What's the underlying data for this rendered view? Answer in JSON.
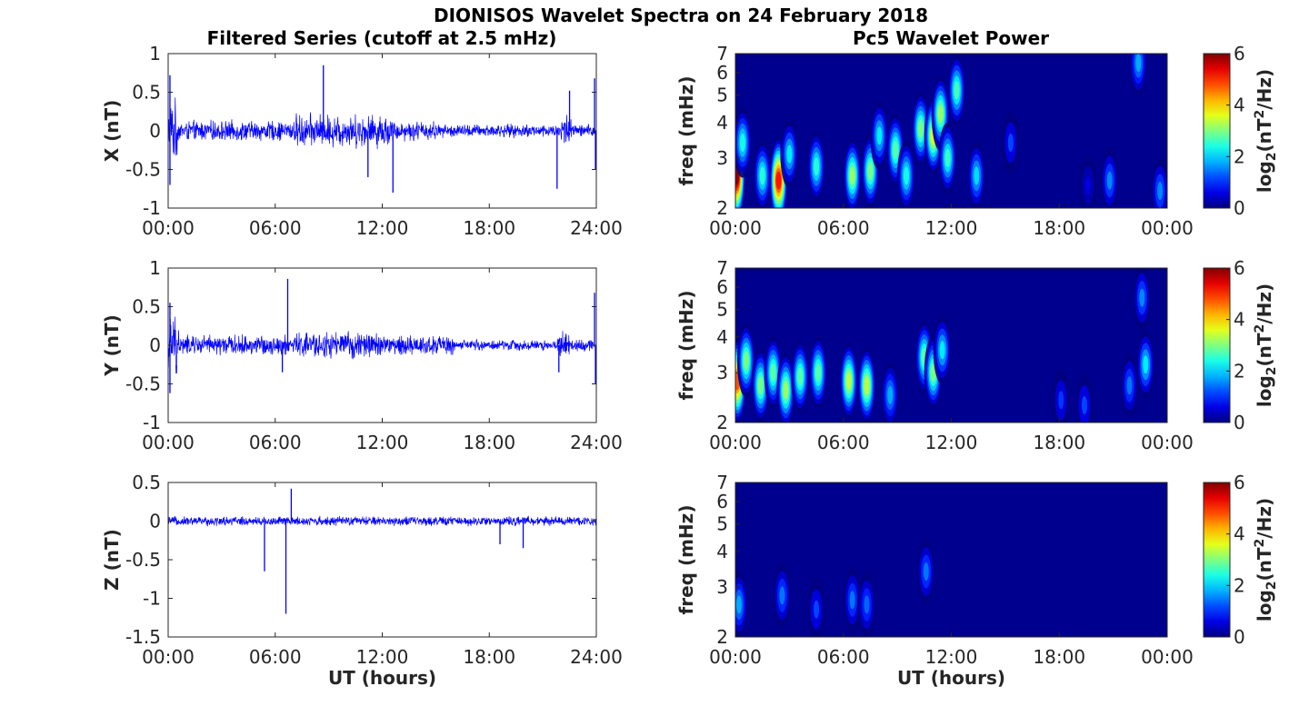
{
  "figure": {
    "title": "DIONISOS Wavelet Spectra on 24 February 2018",
    "left_title": "Filtered Series (cutoff at 2.5 mHz)",
    "right_title": "Pc5 Wavelet Power",
    "colors": {
      "trace": "#0000ff",
      "background": "#00008f"
    }
  },
  "chart_data": [
    {
      "type": "line",
      "ylabel": "X (nT)",
      "xlabel": "",
      "x_ticks": [
        "00:00",
        "06:00",
        "12:00",
        "18:00",
        "24:00"
      ],
      "y_ticks": [
        "1",
        "0.5",
        "0",
        "-0.5",
        "-1"
      ],
      "ylim": [
        -1,
        1
      ],
      "series": [
        {
          "x_hours": [
            0,
            24
          ],
          "amp_segments": [
            [
              0,
              0.5,
              0.45
            ],
            [
              0.5,
              7,
              0.15
            ],
            [
              7,
              12.5,
              0.25
            ],
            [
              12.5,
              15,
              0.15
            ],
            [
              15,
              22,
              0.1
            ],
            [
              22,
              22.6,
              0.25
            ],
            [
              22.6,
              24,
              0.1
            ]
          ],
          "spikes": [
            [
              0.1,
              0.72
            ],
            [
              0.1,
              -0.7
            ],
            [
              8.7,
              0.85
            ],
            [
              11.2,
              -0.6
            ],
            [
              12.6,
              -0.8
            ],
            [
              21.8,
              -0.75
            ],
            [
              22.5,
              0.52
            ],
            [
              23.9,
              0.68
            ],
            [
              23.95,
              -0.5
            ]
          ]
        }
      ]
    },
    {
      "type": "line",
      "ylabel": "Y (nT)",
      "xlabel": "",
      "x_ticks": [
        "00:00",
        "06:00",
        "12:00",
        "18:00",
        "24:00"
      ],
      "y_ticks": [
        "1",
        "0.5",
        "0",
        "-0.5",
        "-1"
      ],
      "ylim": [
        -1,
        1
      ],
      "series": [
        {
          "x_hours": [
            0,
            24
          ],
          "amp_segments": [
            [
              0,
              0.6,
              0.45
            ],
            [
              0.6,
              7,
              0.15
            ],
            [
              7,
              12,
              0.2
            ],
            [
              12,
              16,
              0.15
            ],
            [
              16,
              21.8,
              0.08
            ],
            [
              21.8,
              22.5,
              0.2
            ],
            [
              22.5,
              24,
              0.1
            ]
          ],
          "spikes": [
            [
              0.1,
              0.55
            ],
            [
              0.1,
              -0.62
            ],
            [
              6.7,
              0.86
            ],
            [
              6.4,
              -0.35
            ],
            [
              21.9,
              -0.35
            ],
            [
              23.9,
              0.68
            ],
            [
              23.95,
              -0.5
            ]
          ]
        }
      ]
    },
    {
      "type": "line",
      "ylabel": "Z (nT)",
      "xlabel": "UT (hours)",
      "x_ticks": [
        "00:00",
        "06:00",
        "12:00",
        "18:00",
        "24:00"
      ],
      "y_ticks": [
        "0.5",
        "0",
        "-0.5",
        "-1",
        "-1.5"
      ],
      "ylim": [
        -1.5,
        0.5
      ],
      "series": [
        {
          "x_hours": [
            0,
            24
          ],
          "amp_segments": [
            [
              0,
              24,
              0.07
            ]
          ],
          "spikes": [
            [
              5.4,
              -0.65
            ],
            [
              6.6,
              -1.2
            ],
            [
              6.9,
              0.42
            ],
            [
              18.6,
              -0.3
            ],
            [
              19.9,
              -0.35
            ]
          ]
        }
      ]
    },
    {
      "type": "heatmap",
      "ylabel": "freq (mHz)",
      "xlabel": "",
      "x_ticks": [
        "00:00",
        "06:00",
        "12:00",
        "18:00",
        "00:00"
      ],
      "y_ticks": [
        "7",
        "6",
        "5",
        "4",
        "3",
        "2"
      ],
      "ylim_mHz": [
        2,
        7
      ],
      "y_scale": "log",
      "colorbar": {
        "label": "log2(nT2/Hz)",
        "ticks": [
          "6",
          "4",
          "2",
          "0"
        ],
        "range": [
          0,
          6
        ],
        "colormap": "jet"
      },
      "bursts": [
        [
          0.05,
          2.6,
          6.0
        ],
        [
          0.4,
          3.4,
          2.4
        ],
        [
          1.5,
          2.6,
          2.5
        ],
        [
          2.4,
          2.5,
          5.2
        ],
        [
          3.0,
          3.1,
          2.2
        ],
        [
          4.5,
          2.8,
          2.5
        ],
        [
          6.5,
          2.6,
          3.2
        ],
        [
          7.5,
          2.7,
          3.0
        ],
        [
          8.0,
          3.6,
          2.2
        ],
        [
          8.9,
          3.2,
          2.8
        ],
        [
          9.5,
          2.6,
          2.4
        ],
        [
          10.3,
          3.8,
          3.0
        ],
        [
          11.0,
          3.6,
          3.6
        ],
        [
          11.4,
          4.3,
          3.2
        ],
        [
          11.8,
          3.0,
          2.6
        ],
        [
          12.3,
          5.2,
          2.7
        ],
        [
          13.4,
          2.6,
          2.1
        ],
        [
          15.3,
          3.4,
          1.2
        ],
        [
          19.6,
          2.4,
          0.6
        ],
        [
          20.8,
          2.5,
          1.6
        ],
        [
          22.4,
          6.5,
          1.8
        ],
        [
          23.6,
          2.3,
          1.6
        ]
      ]
    },
    {
      "type": "heatmap",
      "ylabel": "freq (mHz)",
      "xlabel": "",
      "x_ticks": [
        "00:00",
        "06:00",
        "12:00",
        "18:00",
        "00:00"
      ],
      "y_ticks": [
        "7",
        "6",
        "5",
        "4",
        "3",
        "2"
      ],
      "ylim_mHz": [
        2,
        7
      ],
      "y_scale": "log",
      "colorbar": {
        "label": "log2(nT2/Hz)",
        "ticks": [
          "6",
          "4",
          "2",
          "0"
        ],
        "range": [
          0,
          6
        ],
        "colormap": "jet"
      },
      "bursts": [
        [
          0.1,
          2.8,
          4.8
        ],
        [
          0.6,
          3.3,
          3.0
        ],
        [
          1.4,
          2.7,
          3.0
        ],
        [
          2.1,
          3.0,
          2.8
        ],
        [
          2.8,
          2.6,
          3.2
        ],
        [
          3.6,
          2.9,
          2.8
        ],
        [
          4.6,
          3.0,
          2.8
        ],
        [
          6.3,
          2.8,
          3.4
        ],
        [
          7.3,
          2.7,
          3.4
        ],
        [
          8.6,
          2.5,
          1.8
        ],
        [
          10.5,
          3.4,
          2.8
        ],
        [
          11.0,
          3.0,
          3.0
        ],
        [
          11.5,
          3.6,
          2.2
        ],
        [
          18.1,
          2.4,
          1.1
        ],
        [
          19.4,
          2.3,
          1.2
        ],
        [
          21.9,
          2.7,
          1.5
        ],
        [
          22.6,
          5.5,
          1.6
        ],
        [
          22.8,
          3.2,
          2.2
        ]
      ]
    },
    {
      "type": "heatmap",
      "ylabel": "freq (mHz)",
      "xlabel": "UT (hours)",
      "x_ticks": [
        "00:00",
        "06:00",
        "12:00",
        "18:00",
        "00:00"
      ],
      "y_ticks": [
        "7",
        "6",
        "5",
        "4",
        "3",
        "2"
      ],
      "ylim_mHz": [
        2,
        7
      ],
      "y_scale": "log",
      "colorbar": {
        "label": "log2(nT2/Hz)",
        "ticks": [
          "6",
          "4",
          "2",
          "0"
        ],
        "range": [
          0,
          6
        ],
        "colormap": "jet"
      },
      "bursts": [
        [
          0.2,
          2.6,
          1.8
        ],
        [
          2.6,
          2.8,
          1.5
        ],
        [
          4.5,
          2.5,
          1.2
        ],
        [
          6.5,
          2.7,
          1.5
        ],
        [
          7.3,
          2.6,
          1.4
        ],
        [
          10.6,
          3.4,
          1.5
        ]
      ]
    }
  ]
}
